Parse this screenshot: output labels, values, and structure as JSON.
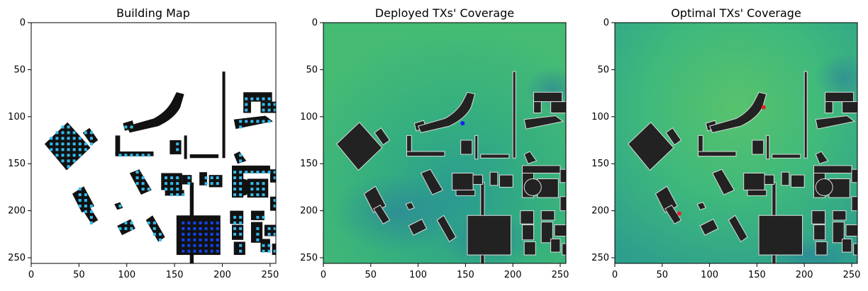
{
  "figure": {
    "panels": [
      {
        "title": "Building Map",
        "x_ticks": [
          "0",
          "50",
          "100",
          "150",
          "200",
          "250"
        ],
        "y_ticks": [
          "0",
          "50",
          "100",
          "150",
          "200",
          "250"
        ]
      },
      {
        "title": "Deployed TXs' Coverage",
        "x_ticks": [
          "0",
          "50",
          "100",
          "150",
          "200",
          "250"
        ],
        "y_ticks": [
          "0",
          "50",
          "100",
          "150",
          "200",
          "250"
        ]
      },
      {
        "title": "Optimal TXs' Coverage",
        "x_ticks": [
          "0",
          "50",
          "100",
          "150",
          "200",
          "250"
        ],
        "y_ticks": [
          "0",
          "50",
          "100",
          "150",
          "200",
          "250"
        ]
      }
    ]
  },
  "colors": {
    "building": "#111111",
    "rooftop_point": "#33bbee",
    "rooftop_point_dark": "#1144ee",
    "coverage_base": "#3fb97c",
    "coverage_building": "#222222",
    "deployed_tx": "#1a1aff",
    "optimal_tx": "#e8202a"
  },
  "chart_data": [
    {
      "type": "heatmap",
      "title": "Building Map",
      "xlim": [
        0,
        256
      ],
      "ylim": [
        256,
        0
      ],
      "x_ticks": [
        0,
        50,
        100,
        150,
        200,
        250
      ],
      "y_ticks": [
        0,
        50,
        100,
        150,
        200,
        250
      ]
    },
    {
      "type": "heatmap",
      "title": "Deployed TXs' Coverage",
      "xlim": [
        0,
        256
      ],
      "ylim": [
        256,
        0
      ],
      "x_ticks": [
        0,
        50,
        100,
        150,
        200,
        250
      ],
      "y_ticks": [
        0,
        50,
        100,
        150,
        200,
        250
      ],
      "tx_points": [
        {
          "x": 147,
          "y": 107
        }
      ]
    },
    {
      "type": "heatmap",
      "title": "Optimal TXs' Coverage",
      "xlim": [
        0,
        256
      ],
      "ylim": [
        256,
        0
      ],
      "x_ticks": [
        0,
        50,
        100,
        150,
        200,
        250
      ],
      "y_ticks": [
        0,
        50,
        100,
        150,
        200,
        250
      ],
      "tx_points": [
        {
          "x": 157,
          "y": 90
        },
        {
          "x": 68,
          "y": 203
        }
      ]
    }
  ]
}
